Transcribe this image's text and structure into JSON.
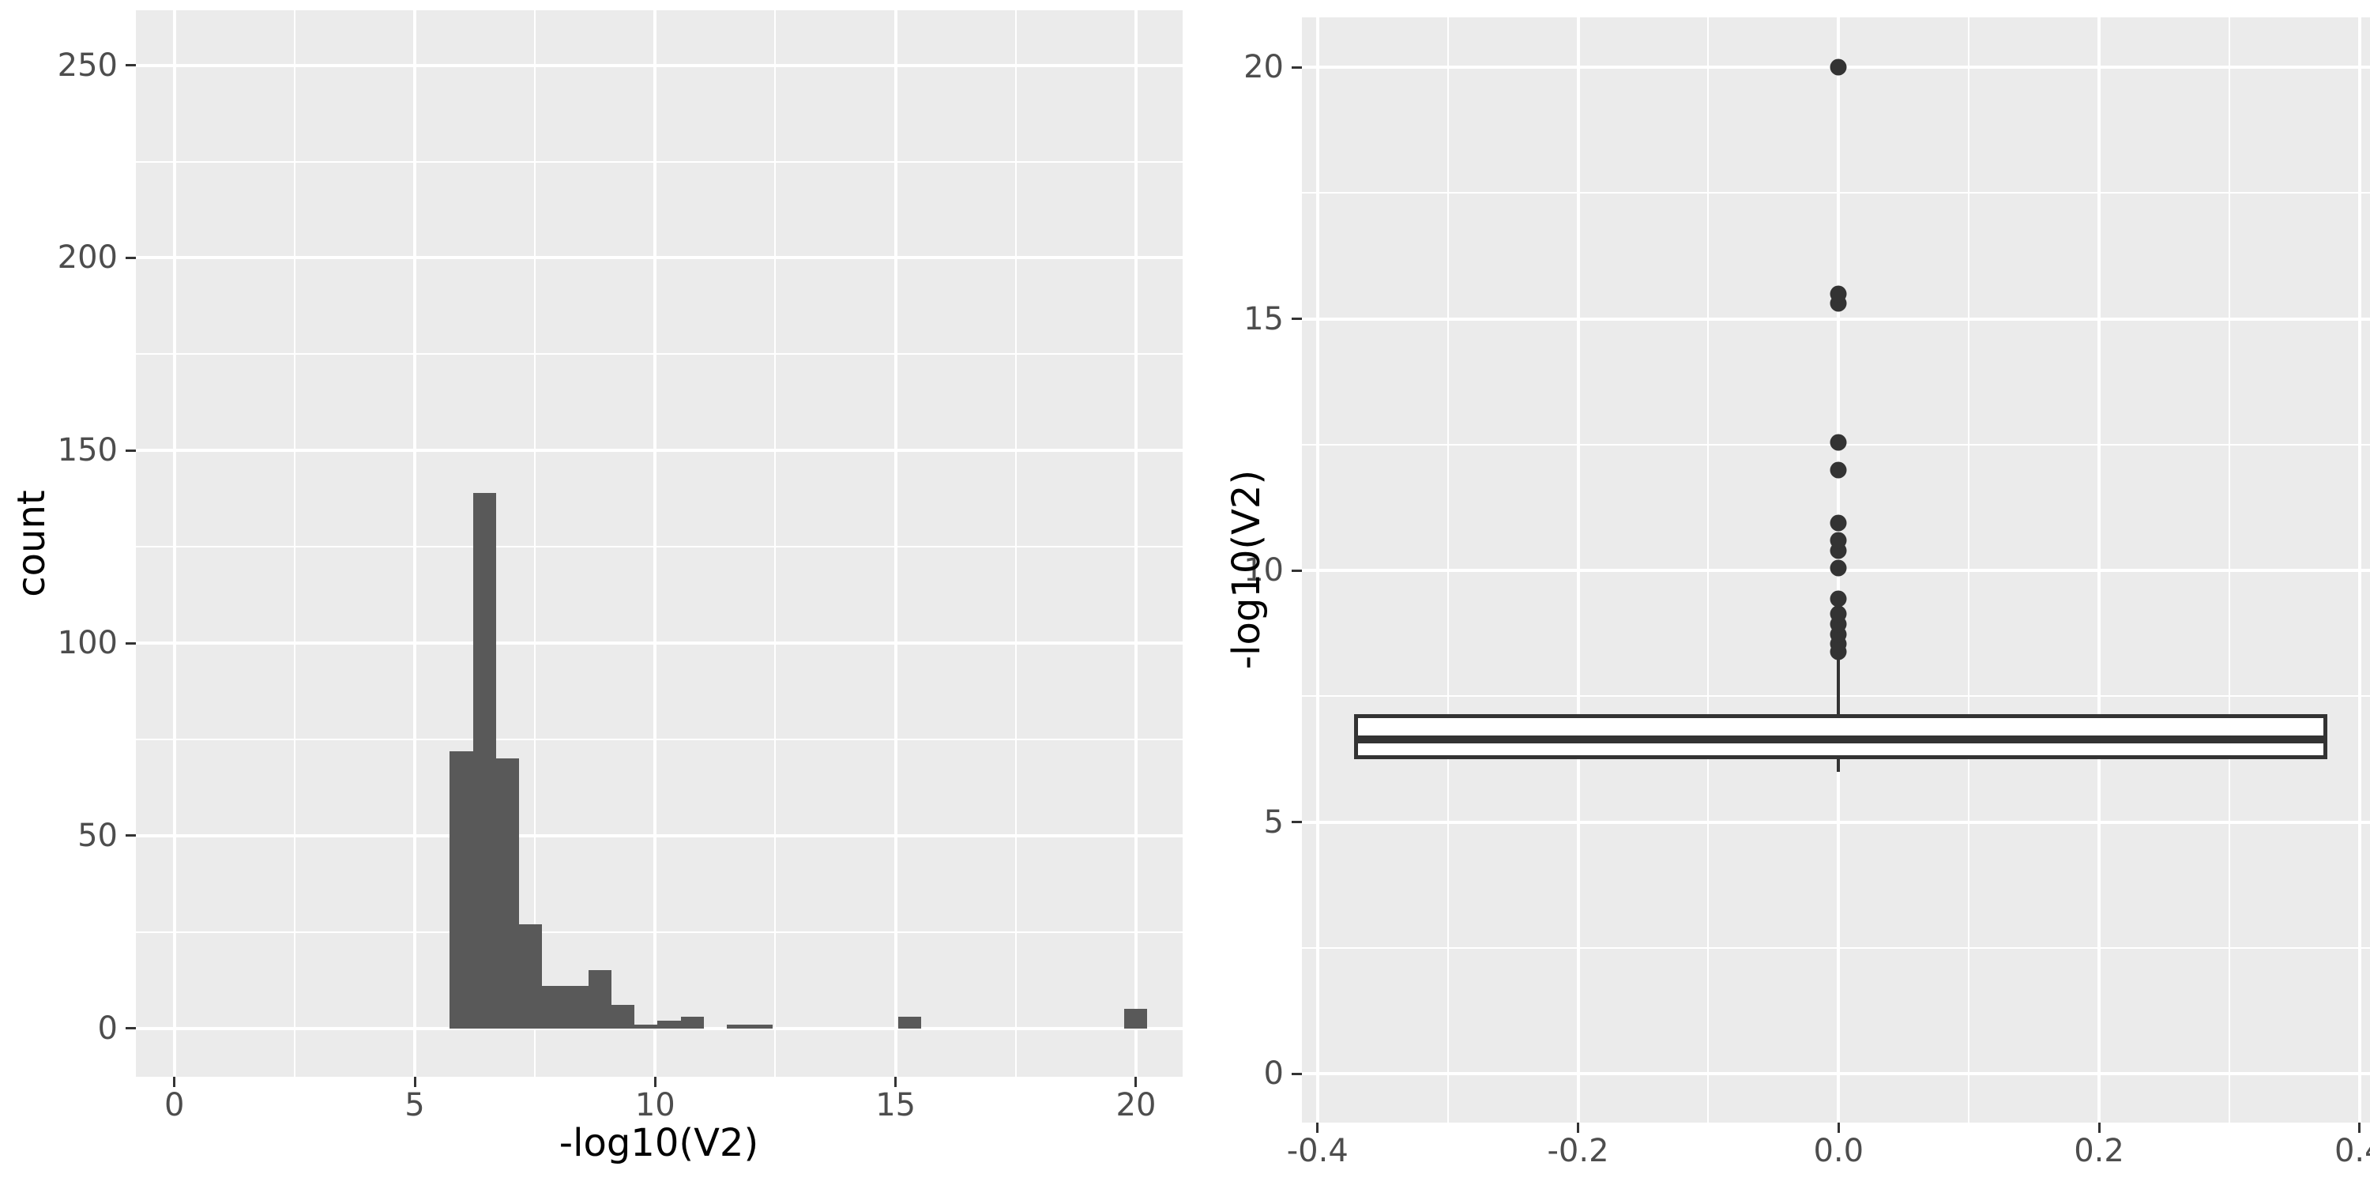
{
  "theme": {
    "page_bg": "#FFFFFF",
    "panel_bg": "#EBEBEB",
    "grid_color": "#FFFFFF",
    "bar_fill": "#595959",
    "box_line_color": "#333333",
    "box_fill": "#FFFFFF",
    "point_color": "#333333",
    "tick_text_color": "#4D4D4D",
    "axis_title_color": "#000000",
    "tick_mark_color": "#333333"
  },
  "chart_data": [
    {
      "type": "bar",
      "title": "",
      "xlabel": "-log10(V2)",
      "ylabel": "count",
      "grid": true,
      "legend": "none",
      "xlim": [
        -0.8,
        20.97
      ],
      "ylim": [
        -12.6,
        264.3
      ],
      "x_ticks": [
        {
          "v": 0,
          "label": "0"
        },
        {
          "v": 5,
          "label": "5"
        },
        {
          "v": 10,
          "label": "10"
        },
        {
          "v": 15,
          "label": "15"
        },
        {
          "v": 20,
          "label": "20"
        }
      ],
      "x_minor": [
        2.5,
        7.5,
        12.5,
        17.5
      ],
      "y_ticks": [
        {
          "v": 0,
          "label": "0"
        },
        {
          "v": 50,
          "label": "50"
        },
        {
          "v": 100,
          "label": "100"
        },
        {
          "v": 150,
          "label": "150"
        },
        {
          "v": 200,
          "label": "200"
        },
        {
          "v": 250,
          "label": "250"
        }
      ],
      "y_minor": [
        25,
        75,
        125,
        175,
        225
      ],
      "bars": [
        {
          "x0": 5.73,
          "x1": 6.21,
          "count": 72
        },
        {
          "x0": 6.21,
          "x1": 6.69,
          "count": 139
        },
        {
          "x0": 6.69,
          "x1": 7.17,
          "count": 70
        },
        {
          "x0": 7.17,
          "x1": 7.65,
          "count": 27
        },
        {
          "x0": 7.65,
          "x1": 8.13,
          "count": 11
        },
        {
          "x0": 8.13,
          "x1": 8.61,
          "count": 11
        },
        {
          "x0": 8.61,
          "x1": 9.09,
          "count": 15
        },
        {
          "x0": 9.09,
          "x1": 9.57,
          "count": 6
        },
        {
          "x0": 9.57,
          "x1": 10.05,
          "count": 1
        },
        {
          "x0": 10.05,
          "x1": 10.53,
          "count": 2
        },
        {
          "x0": 10.53,
          "x1": 11.01,
          "count": 3
        },
        {
          "x0": 11.49,
          "x1": 11.97,
          "count": 1
        },
        {
          "x0": 11.97,
          "x1": 12.45,
          "count": 1
        },
        {
          "x0": 15.05,
          "x1": 15.53,
          "count": 3
        },
        {
          "x0": 19.75,
          "x1": 20.23,
          "count": 5
        }
      ]
    },
    {
      "type": "boxplot",
      "title": "",
      "xlabel": "",
      "ylabel": "-log10(V2)",
      "grid": true,
      "legend": "none",
      "xlim": [
        -0.412,
        0.408
      ],
      "ylim": [
        -0.97,
        20.99
      ],
      "x_ticks": [
        {
          "v": -0.4,
          "label": "-0.4"
        },
        {
          "v": -0.2,
          "label": "-0.2"
        },
        {
          "v": 0,
          "label": "0.0"
        },
        {
          "v": 0.2,
          "label": "0.2"
        },
        {
          "v": 0.4,
          "label": "0.4"
        }
      ],
      "x_minor": [
        -0.3,
        -0.1,
        0.1,
        0.3
      ],
      "y_ticks": [
        {
          "v": 0,
          "label": "0"
        },
        {
          "v": 5,
          "label": "5"
        },
        {
          "v": 10,
          "label": "10"
        },
        {
          "v": 15,
          "label": "15"
        },
        {
          "v": 20,
          "label": "20"
        }
      ],
      "y_minor": [
        2.5,
        7.5,
        12.5,
        17.5
      ],
      "box": {
        "center_x": 0,
        "box_left": -0.372,
        "box_right": 0.375,
        "q1": 6.25,
        "median": 6.65,
        "q3": 7.15,
        "whisker_low": 6.0,
        "whisker_high": 8.3
      },
      "outliers": [
        8.38,
        8.54,
        8.73,
        8.93,
        9.14,
        9.43,
        10.05,
        10.4,
        10.6,
        10.95,
        12.0,
        12.55,
        15.3,
        15.5,
        20.0
      ]
    }
  ]
}
